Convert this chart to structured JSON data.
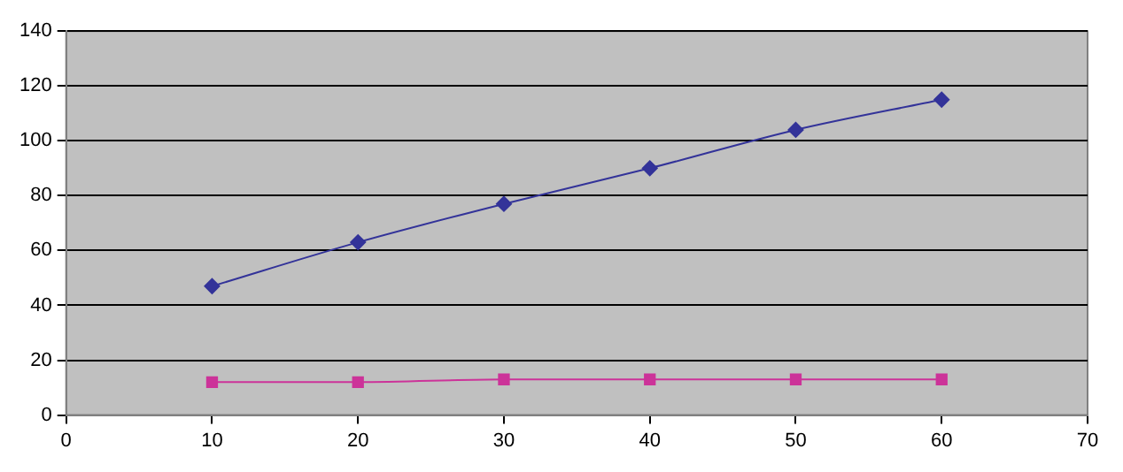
{
  "chart_data": {
    "type": "line",
    "x": [
      10,
      20,
      30,
      40,
      50,
      60
    ],
    "series": [
      {
        "color": "#333399",
        "marker": "diamond",
        "values": [
          47,
          63,
          77,
          90,
          104,
          115
        ]
      },
      {
        "color": "#cc3399",
        "marker": "square",
        "values": [
          12,
          12,
          13,
          13,
          13,
          13
        ]
      }
    ],
    "xlim": [
      0,
      70
    ],
    "xticks": [
      0,
      10,
      20,
      30,
      40,
      50,
      60,
      70
    ],
    "ylim": [
      0,
      140
    ],
    "yticks": [
      0,
      20,
      40,
      60,
      80,
      100,
      120,
      140
    ],
    "grid": "y",
    "legend": false
  }
}
